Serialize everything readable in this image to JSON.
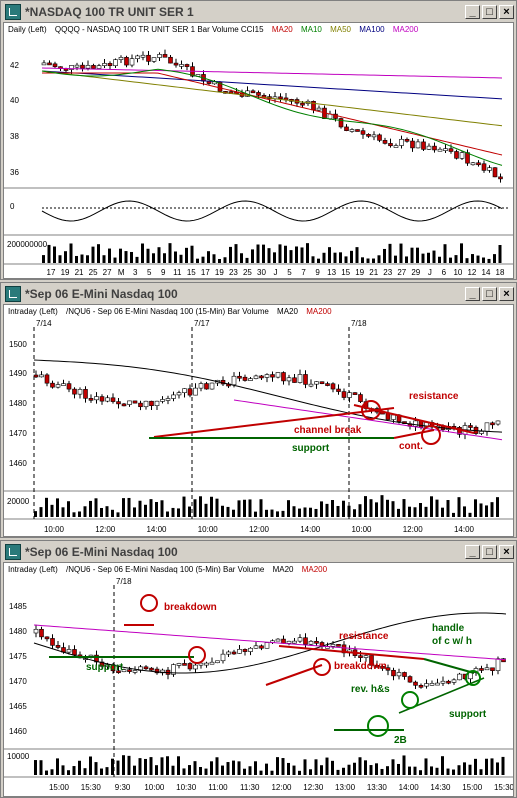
{
  "windows": [
    {
      "title": "*NASDAQ 100 TR UNIT SER 1",
      "legend": [
        "Daily  (Left)",
        "QQQQ - NASDAQ 100 TR UNIT SER 1  Bar  Volume  CCI15",
        "MA20",
        "MA10",
        "MA50",
        "MA100",
        "MA200"
      ],
      "legend_colors": [
        "#000000",
        "#000000",
        "#c00000",
        "#008000",
        "#808000",
        "#000080",
        "#c000c0"
      ],
      "price_ticks": [
        "42",
        "40",
        "38",
        "36"
      ],
      "osc_ticks": [
        "0"
      ],
      "vol_ticks": [
        "200000000"
      ],
      "dates": [
        "17",
        "19",
        "21",
        "25",
        "27",
        "M",
        "3",
        "5",
        "9",
        "11",
        "15",
        "17",
        "19",
        "23",
        "25",
        "30",
        "J",
        "5",
        "7",
        "9",
        "13",
        "15",
        "19",
        "21",
        "23",
        "27",
        "29",
        "J",
        "6",
        "10",
        "12",
        "14",
        "18"
      ]
    },
    {
      "title": "*Sep 06  E-Mini Nasdaq 100",
      "legend": [
        "Intraday  (Left)",
        "/NQU6 - Sep 06  E-Mini Nasdaq 100  (15-Min)  Bar  Volume",
        "MA20",
        "MA200"
      ],
      "legend_colors": [
        "#000000",
        "#000000",
        "#000000",
        "#c00000"
      ],
      "session_labels": [
        "7/14",
        "7/17",
        "7/18"
      ],
      "price_ticks": [
        "1500",
        "1490",
        "1480",
        "1470",
        "1460"
      ],
      "vol_ticks": [
        "20000"
      ],
      "times": [
        "10:00",
        "12:00",
        "14:00",
        "10:00",
        "12:00",
        "14:00",
        "10:00",
        "12:00",
        "14:00"
      ],
      "annotations": {
        "resistance": "resistance",
        "channel_break": "channel break",
        "support": "support",
        "cont": "cont."
      }
    },
    {
      "title": "*Sep 06  E-Mini Nasdaq 100",
      "legend": [
        "Intraday  (Left)",
        "/NQU6 - Sep 06  E-Mini Nasdaq 100  (5-Min)  Bar  Volume",
        "MA20",
        "MA200"
      ],
      "legend_colors": [
        "#000000",
        "#000000",
        "#000000",
        "#c00000"
      ],
      "session_labels": [
        "7/18"
      ],
      "price_ticks": [
        "1485",
        "1480",
        "1475",
        "1470",
        "1465",
        "1460"
      ],
      "vol_ticks": [
        "10000"
      ],
      "times": [
        "15:00",
        "15:30",
        "9:30",
        "10:00",
        "10:30",
        "11:00",
        "11:30",
        "12:00",
        "12:30",
        "13:00",
        "13:30",
        "14:00",
        "14:30",
        "15:00",
        "15:30"
      ],
      "annotations": {
        "breakdown1": "breakdown",
        "support1": "support",
        "resistance": "resistance",
        "breakdown2": "breakdown",
        "rev_hs": "rev. h&s",
        "twob": "2B",
        "handle1": "handle",
        "handle2": "of c w/ h",
        "support2": "support"
      }
    }
  ],
  "colors": {
    "up": "#ffffff",
    "down": "#c00000",
    "annot_red": "#c00000",
    "annot_green": "#006400",
    "ma20": "#c00000",
    "ma10": "#008000",
    "ma50": "#808000",
    "ma100": "#000080",
    "ma200": "#c000c0"
  }
}
